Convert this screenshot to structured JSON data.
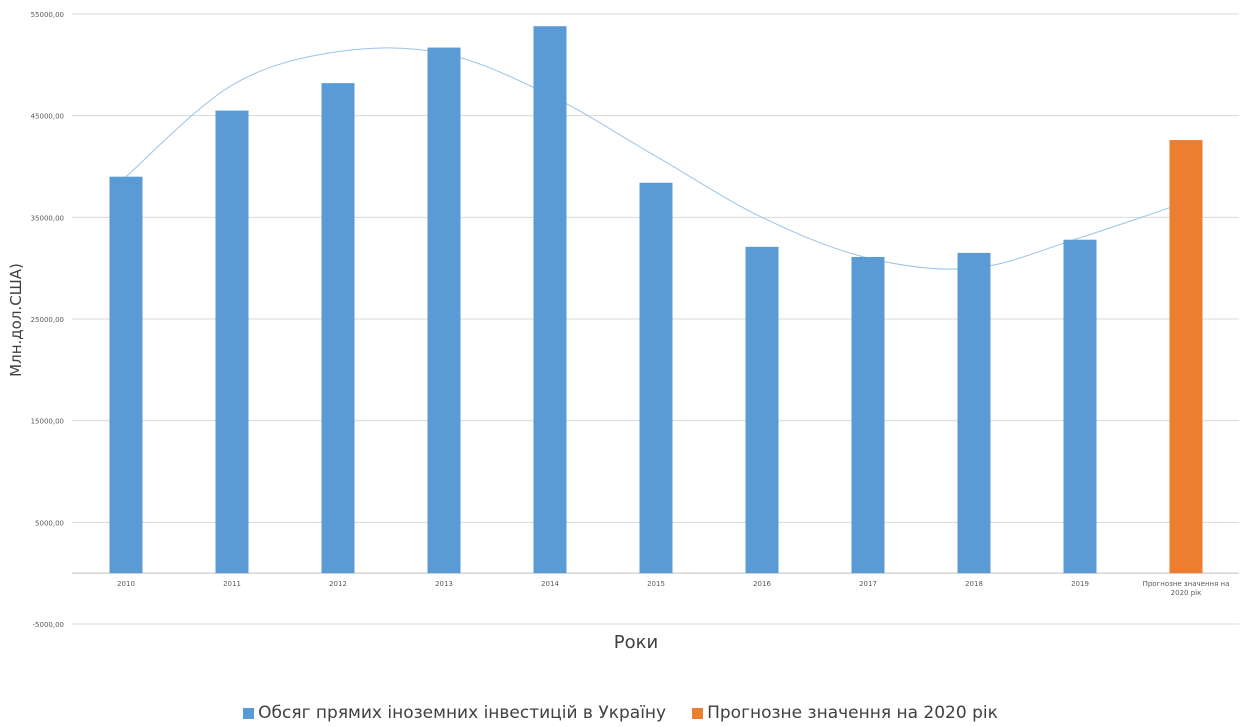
{
  "chart_data": {
    "type": "bar",
    "title": "",
    "xlabel": "Роки",
    "ylabel": "Млн.дол.США)",
    "ylim": [
      -5000,
      55000
    ],
    "yticks": [
      -5000,
      5000,
      15000,
      25000,
      35000,
      45000,
      55000
    ],
    "ytick_labels": [
      "-5000,00",
      "5000,00",
      "15000,00",
      "25000,00",
      "35000,00",
      "45000,00",
      "55000,00"
    ],
    "categories": [
      "2010",
      "2011",
      "2012",
      "2013",
      "2014",
      "2015",
      "2016",
      "2017",
      "2018",
      "2019",
      "Прогнозне значення на 2020 рік"
    ],
    "category_label_lines": [
      [
        "2010"
      ],
      [
        "2011"
      ],
      [
        "2012"
      ],
      [
        "2013"
      ],
      [
        "2014"
      ],
      [
        "2015"
      ],
      [
        "2016"
      ],
      [
        "2017"
      ],
      [
        "2018"
      ],
      [
        "2019"
      ],
      [
        "Прогнозне значення на",
        "2020 рік"
      ]
    ],
    "series": [
      {
        "name": "Обсяг прямих іноземних інвестицій в Україну",
        "color": "#5b9bd5",
        "values": [
          39000,
          45500,
          48200,
          51700,
          53800,
          38400,
          32100,
          31100,
          31500,
          32800,
          null
        ]
      },
      {
        "name": "Прогнозне значення на 2020 рік",
        "color": "#ed7d31",
        "values": [
          null,
          null,
          null,
          null,
          null,
          null,
          null,
          null,
          null,
          null,
          42600
        ]
      }
    ],
    "trendline": {
      "type": "polynomial",
      "color": "#9dc3e6",
      "values": [
        39000,
        48000,
        51300,
        51100,
        47000,
        41000,
        35000,
        31000,
        30000,
        33000,
        36500
      ]
    },
    "grid": true,
    "legend_position": "bottom"
  }
}
